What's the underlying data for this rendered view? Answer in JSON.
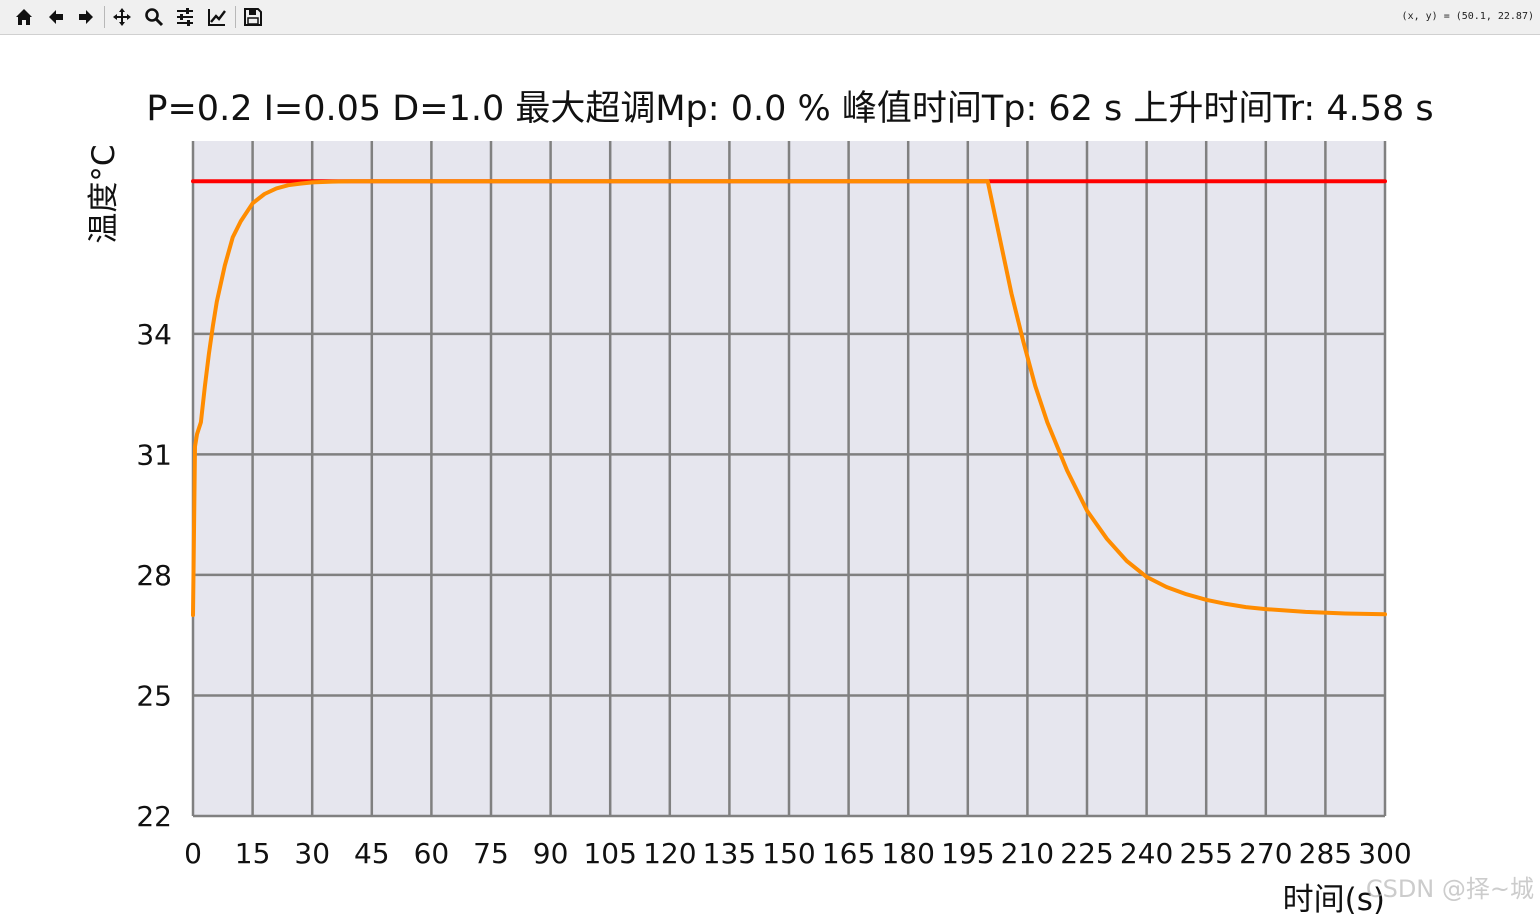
{
  "toolbar": {
    "buttons": [
      {
        "name": "home-button",
        "icon": "home-icon"
      },
      {
        "name": "back-button",
        "icon": "arrow-left-icon"
      },
      {
        "name": "forward-button",
        "icon": "arrow-right-icon"
      },
      {
        "name": "pan-button",
        "icon": "move-icon"
      },
      {
        "name": "zoom-button",
        "icon": "magnifier-icon"
      },
      {
        "name": "configure-subplots-button",
        "icon": "sliders-icon"
      },
      {
        "name": "edit-axis-button",
        "icon": "chart-line-icon"
      },
      {
        "name": "save-button",
        "icon": "floppy-disk-icon"
      }
    ],
    "coords_text": "(x, y) = (50.1, 22.87)"
  },
  "watermark": "CSDN @择~城",
  "colors": {
    "plot_background": "#e6e6ee",
    "grid": "#808080",
    "setpoint_line": "#ff0000",
    "response_line": "#ff8c00"
  },
  "chart_data": {
    "type": "line",
    "title": "P=0.2  I=0.05  D=1.0  最大超调Mp: 0.0 %  峰值时间Tp: 62 s  上升时间Tr: 4.58 s",
    "xlabel": "时间(s)",
    "ylabel": "温度°C",
    "xlim": [
      0,
      300
    ],
    "ylim": [
      22,
      38.8
    ],
    "xticks": [
      0,
      15,
      30,
      45,
      60,
      75,
      90,
      105,
      120,
      135,
      150,
      165,
      180,
      195,
      210,
      225,
      240,
      255,
      270,
      285,
      300
    ],
    "yticks": [
      22,
      25,
      28,
      31,
      34
    ],
    "grid": true,
    "series": [
      {
        "color": "#ff0000",
        "x": [
          0,
          300
        ],
        "y": [
          37.8,
          37.8
        ]
      },
      {
        "color": "#ff8c00",
        "x": [
          0,
          0.5,
          1,
          2,
          3,
          4,
          5,
          6,
          8,
          10,
          12,
          15,
          18,
          21,
          24,
          27,
          30,
          35,
          40,
          50,
          60,
          90,
          120,
          150,
          180,
          195,
          198,
          200,
          203,
          206,
          209,
          212,
          215,
          220,
          225,
          230,
          235,
          240,
          245,
          250,
          255,
          260,
          265,
          270,
          280,
          290,
          300
        ],
        "y": [
          27.0,
          31.2,
          31.5,
          31.8,
          32.7,
          33.5,
          34.2,
          34.8,
          35.7,
          36.4,
          36.8,
          37.25,
          37.48,
          37.62,
          37.7,
          37.74,
          37.77,
          37.79,
          37.8,
          37.8,
          37.8,
          37.8,
          37.8,
          37.8,
          37.8,
          37.8,
          37.8,
          37.8,
          36.4,
          35.0,
          33.8,
          32.7,
          31.8,
          30.6,
          29.6,
          28.9,
          28.35,
          27.95,
          27.7,
          27.52,
          27.38,
          27.28,
          27.2,
          27.15,
          27.08,
          27.04,
          27.02
        ]
      }
    ]
  }
}
